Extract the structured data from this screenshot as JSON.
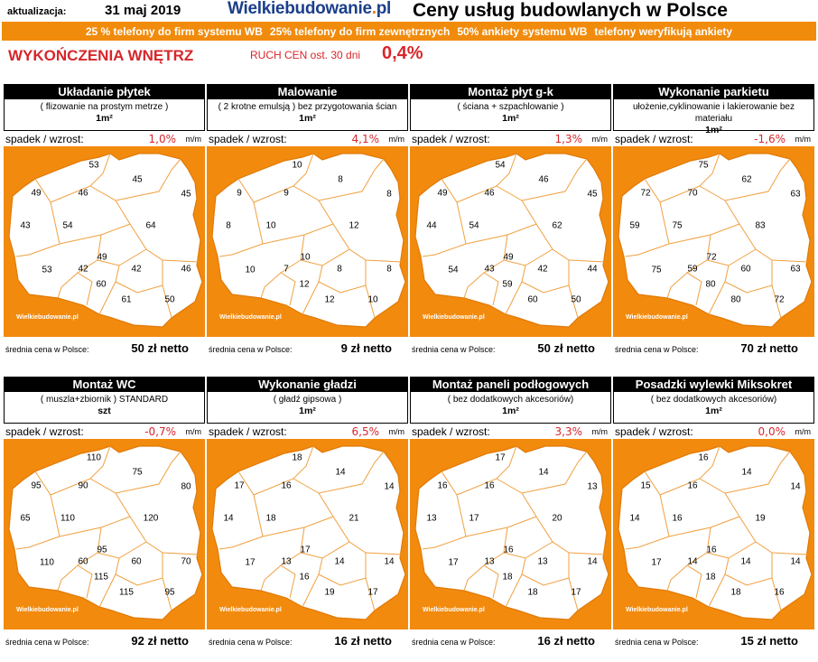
{
  "header": {
    "updated_label": "aktualizacja:",
    "updated_date": "31 maj 2019",
    "logo": "Wielkiebudowanie.pl",
    "title": "Ceny usług budowlanych w Polsce"
  },
  "banner": [
    "25 % telefony do firm systemu WB",
    "25% telefony do firm zewnętrznych",
    "50% ankiety systemu WB",
    "telefony weryfikują ankiety"
  ],
  "section": {
    "title": "WYKOŃCZENIA WNĘTRZ",
    "ruch_label": "RUCH CEN ost. 30 dni",
    "ruch_value": "0,4%"
  },
  "labels": {
    "change": "spadek / wzrost:",
    "mm": "m/m",
    "avg": "średnia cena w Polsce:",
    "watermark": "Wielkiebudowanie.pl"
  },
  "cards": [
    {
      "title": "Układanie płytek",
      "desc": "( flizowanie na prostym metrze )",
      "unit": "1m²",
      "change": "1,0%",
      "avg": "50 zł netto",
      "values": [
        "53",
        "45",
        "49",
        "46",
        "45",
        "43",
        "54",
        "64",
        "49",
        "53",
        "42",
        "42",
        "46",
        "60",
        "61",
        "50"
      ]
    },
    {
      "title": "Malowanie",
      "desc": "( 2 krotne emulsją ) bez przygotowania ścian",
      "unit": "1m²",
      "change": "4,1%",
      "avg": "9 zł netto",
      "values": [
        "10",
        "8",
        "9",
        "9",
        "8",
        "8",
        "10",
        "12",
        "10",
        "10",
        "7",
        "8",
        "8",
        "12",
        "12",
        "10"
      ]
    },
    {
      "title": "Montaż płyt g-k",
      "desc": "( ściana + szpachlowanie )",
      "unit": "1m²",
      "change": "1,3%",
      "avg": "50 zł netto",
      "values": [
        "54",
        "46",
        "49",
        "46",
        "45",
        "44",
        "54",
        "62",
        "49",
        "54",
        "43",
        "42",
        "44",
        "59",
        "60",
        "50"
      ]
    },
    {
      "title": "Wykonanie parkietu",
      "desc": "ułożenie,cyklinowanie i lakierowanie bez materiału",
      "unit": "1m²",
      "change": "-1,6%",
      "avg": "70 zł netto",
      "values": [
        "75",
        "62",
        "72",
        "70",
        "63",
        "59",
        "75",
        "83",
        "72",
        "75",
        "59",
        "60",
        "63",
        "80",
        "80",
        "72"
      ]
    },
    {
      "title": "Montaż WC",
      "desc": "( muszla+zbiornik ) STANDARD",
      "unit": "szt",
      "change": "-0,7%",
      "avg": "92 zł netto",
      "values": [
        "110",
        "75",
        "95",
        "90",
        "80",
        "65",
        "110",
        "120",
        "95",
        "110",
        "60",
        "60",
        "70",
        "115",
        "115",
        "95"
      ]
    },
    {
      "title": "Wykonanie gładzi",
      "desc": "( gładź gipsowa )",
      "unit": "1m²",
      "change": "6,5%",
      "avg": "16 zł netto",
      "values": [
        "18",
        "14",
        "17",
        "16",
        "14",
        "14",
        "18",
        "21",
        "17",
        "17",
        "13",
        "14",
        "14",
        "16",
        "19",
        "17"
      ]
    },
    {
      "title": "Montaż paneli podłogowych",
      "desc": "( bez dodatkowych akcesoriów)",
      "unit": "1m²",
      "change": "3,3%",
      "avg": "16 zł netto",
      "values": [
        "17",
        "14",
        "16",
        "16",
        "13",
        "13",
        "17",
        "20",
        "16",
        "17",
        "13",
        "13",
        "14",
        "18",
        "18",
        "17"
      ]
    },
    {
      "title": "Posadzki wylewki Miksokret",
      "desc": "( bez dodatkowych akcesoriów)",
      "unit": "1m²",
      "change": "0,0%",
      "avg": "15 zł netto",
      "values": [
        "16",
        "14",
        "15",
        "16",
        "14",
        "14",
        "16",
        "19",
        "16",
        "17",
        "14",
        "14",
        "14",
        "18",
        "18",
        "16"
      ]
    }
  ]
}
